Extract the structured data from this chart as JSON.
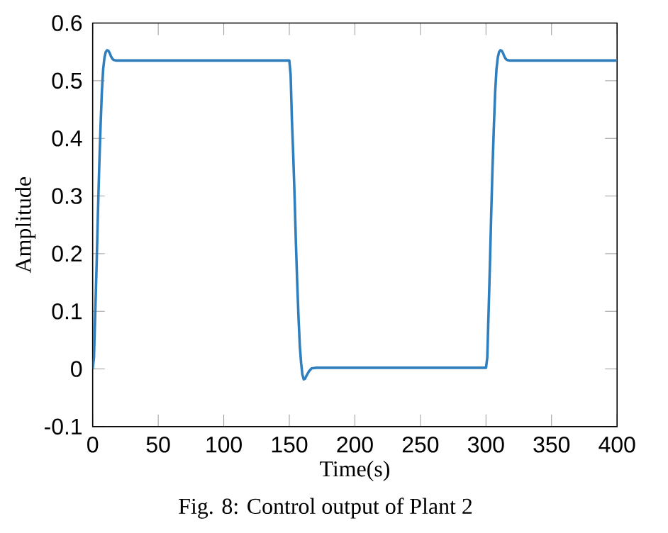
{
  "chart_data": {
    "type": "line",
    "xlabel": "Time(s)",
    "ylabel": "Amplitude",
    "annotations": [
      "Fig. 8: Control output of Plant 2"
    ],
    "x": [
      0,
      1,
      2,
      3,
      4,
      5,
      6,
      7,
      8,
      9,
      10,
      11,
      12,
      13,
      14,
      15,
      16,
      18,
      20,
      30,
      60,
      100,
      150,
      151,
      152,
      153,
      154,
      155,
      156,
      157,
      158,
      159,
      160,
      161,
      162,
      163,
      165,
      167,
      170,
      180,
      220,
      260,
      300,
      301,
      302,
      303,
      304,
      305,
      306,
      307,
      308,
      309,
      310,
      311,
      312,
      313,
      314,
      315,
      316,
      318,
      320,
      340,
      370,
      400
    ],
    "series": [
      {
        "color": "#2f7fbf",
        "values": [
          0,
          0.02,
          0.1,
          0.18,
          0.27,
          0.35,
          0.42,
          0.48,
          0.52,
          0.54,
          0.55,
          0.553,
          0.552,
          0.548,
          0.542,
          0.538,
          0.536,
          0.535,
          0.535,
          0.535,
          0.535,
          0.535,
          0.535,
          0.51,
          0.43,
          0.37,
          0.3,
          0.22,
          0.15,
          0.09,
          0.04,
          0.01,
          -0.01,
          -0.018,
          -0.017,
          -0.012,
          -0.004,
          0.001,
          0.002,
          0.002,
          0.002,
          0.002,
          0.002,
          0.02,
          0.1,
          0.18,
          0.27,
          0.35,
          0.42,
          0.48,
          0.52,
          0.54,
          0.55,
          0.553,
          0.552,
          0.548,
          0.542,
          0.538,
          0.536,
          0.535,
          0.535,
          0.535,
          0.535,
          0.535
        ]
      }
    ],
    "xlim": [
      0,
      400
    ],
    "ylim": [
      -0.1,
      0.6
    ],
    "xticks": [
      0,
      50,
      100,
      150,
      200,
      250,
      300,
      350,
      400
    ],
    "yticks": [
      -0.1,
      0,
      0.1,
      0.2,
      0.3,
      0.4,
      0.5,
      0.6
    ],
    "grid": false,
    "marker": "none",
    "line_style": "solid"
  }
}
